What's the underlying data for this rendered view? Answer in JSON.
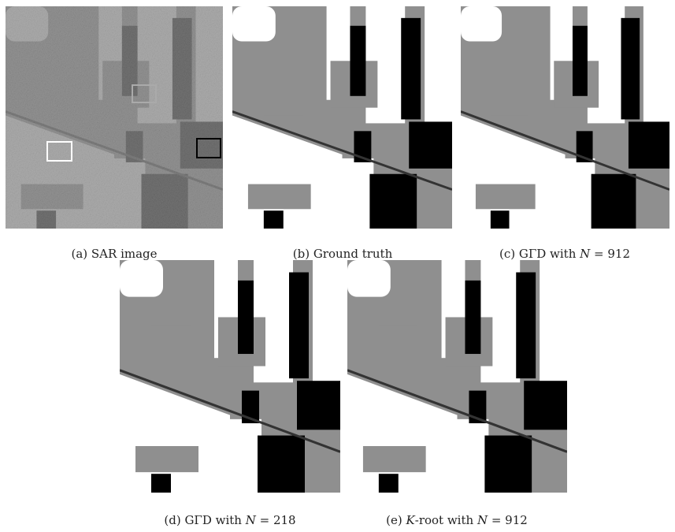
{
  "panels": [
    {
      "caption": [
        {
          "t": "(a) SAR image"
        }
      ]
    },
    {
      "caption": [
        {
          "t": "(b) Ground truth"
        }
      ]
    },
    {
      "caption": [
        {
          "t": "(c) GΓD with "
        },
        {
          "t": "N",
          "i": true
        },
        {
          "t": " = 912"
        }
      ]
    },
    {
      "caption": [
        {
          "t": "(d) GΓD with "
        },
        {
          "t": "N",
          "i": true
        },
        {
          "t": " = 218"
        }
      ]
    },
    {
      "caption": [
        {
          "t": "(e) "
        },
        {
          "t": "K",
          "i": true
        },
        {
          "t": "-root with "
        },
        {
          "t": "N",
          "i": true
        },
        {
          "t": " = 912"
        }
      ]
    }
  ]
}
